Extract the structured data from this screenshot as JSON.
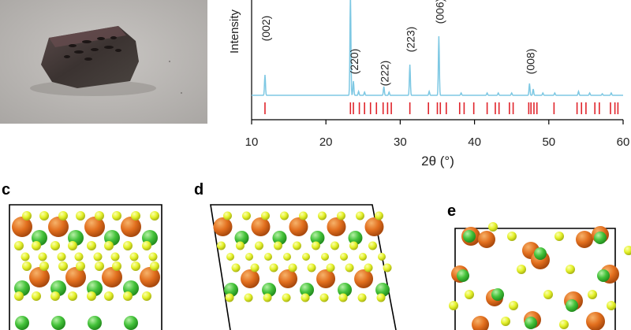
{
  "panels": {
    "c": "c",
    "d": "d",
    "e": "e"
  },
  "chart_data": {
    "type": "line",
    "ylabel": "Intensity",
    "xlabel": "2θ (°)",
    "xlim": [
      10,
      60
    ],
    "xticks": [
      10,
      20,
      30,
      40,
      50,
      60
    ],
    "grid": false,
    "colors": {
      "measured": "#7ec8e3",
      "reference": "#e0242b"
    },
    "peaks": [
      {
        "x": 11.8,
        "h": 0.26
      },
      {
        "x": 23.3,
        "h": 1.3
      },
      {
        "x": 23.7,
        "h": 0.18
      },
      {
        "x": 24.4,
        "h": 0.05
      },
      {
        "x": 25.2,
        "h": 0.04
      },
      {
        "x": 27.8,
        "h": 0.11
      },
      {
        "x": 28.5,
        "h": 0.04
      },
      {
        "x": 31.3,
        "h": 0.39
      },
      {
        "x": 33.9,
        "h": 0.05
      },
      {
        "x": 35.2,
        "h": 0.75
      },
      {
        "x": 38.2,
        "h": 0.03
      },
      {
        "x": 41.7,
        "h": 0.03
      },
      {
        "x": 43.2,
        "h": 0.03
      },
      {
        "x": 45.0,
        "h": 0.03
      },
      {
        "x": 47.4,
        "h": 0.15
      },
      {
        "x": 47.9,
        "h": 0.08
      },
      {
        "x": 49.2,
        "h": 0.03
      },
      {
        "x": 50.8,
        "h": 0.03
      },
      {
        "x": 54.0,
        "h": 0.05
      },
      {
        "x": 55.5,
        "h": 0.03
      },
      {
        "x": 57.2,
        "h": 0.02
      },
      {
        "x": 58.4,
        "h": 0.03
      }
    ],
    "annotations": [
      {
        "label": "(002)",
        "x": 11.8
      },
      {
        "label": "(220)",
        "x": 23.7
      },
      {
        "label": "(222)",
        "x": 27.8
      },
      {
        "label": "(223)",
        "x": 31.3
      },
      {
        "label": "(006)",
        "x": 35.2
      },
      {
        "label": "(008)",
        "x": 47.4
      }
    ],
    "reference_ticks": [
      11.8,
      23.3,
      23.7,
      24.5,
      25.2,
      26.0,
      26.8,
      27.7,
      28.3,
      28.8,
      31.3,
      33.8,
      35.0,
      35.4,
      36.2,
      38.0,
      38.6,
      39.9,
      41.7,
      42.8,
      43.3,
      44.7,
      45.2,
      47.3,
      47.6,
      48.0,
      48.4,
      50.7,
      53.8,
      54.4,
      55.0,
      56.2,
      56.8,
      58.3,
      58.9,
      59.3
    ]
  }
}
